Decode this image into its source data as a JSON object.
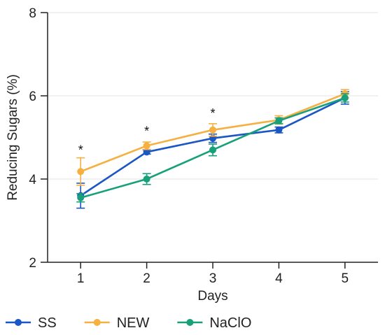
{
  "chart_data": {
    "type": "line",
    "title": "",
    "xlabel": "Days",
    "ylabel": "Reducing Sugars (%)",
    "x": [
      1,
      2,
      3,
      4,
      5
    ],
    "x_tick_labels": [
      "1",
      "2",
      "3",
      "4",
      "5"
    ],
    "xlim": [
      0.5,
      5.5
    ],
    "ylim": [
      2,
      8
    ],
    "y_ticks": [
      2,
      4,
      6,
      8
    ],
    "y_tick_labels": [
      "2",
      "4",
      "6",
      "8"
    ],
    "grid": "horizontal",
    "legend_position": "bottom",
    "series": [
      {
        "name": "SS",
        "color": "#1a56c4",
        "values": [
          3.6,
          4.65,
          4.98,
          5.18,
          5.95
        ],
        "errors": [
          0.3,
          0.05,
          0.1,
          0.07,
          0.15
        ]
      },
      {
        "name": "NEW",
        "color": "#f5b041",
        "values": [
          4.18,
          4.8,
          5.18,
          5.42,
          6.05
        ],
        "errors": [
          0.33,
          0.09,
          0.15,
          0.1,
          0.1
        ]
      },
      {
        "name": "NaClO",
        "color": "#17a07a",
        "values": [
          3.55,
          4.0,
          4.7,
          5.4,
          5.95
        ],
        "errors": [
          0.1,
          0.13,
          0.14,
          0.07,
          0.1
        ]
      }
    ],
    "annotations": [
      {
        "x": 1,
        "y": 4.7,
        "text": "*"
      },
      {
        "x": 2,
        "y": 5.15,
        "text": "*"
      },
      {
        "x": 3,
        "y": 5.58,
        "text": "*"
      }
    ]
  }
}
